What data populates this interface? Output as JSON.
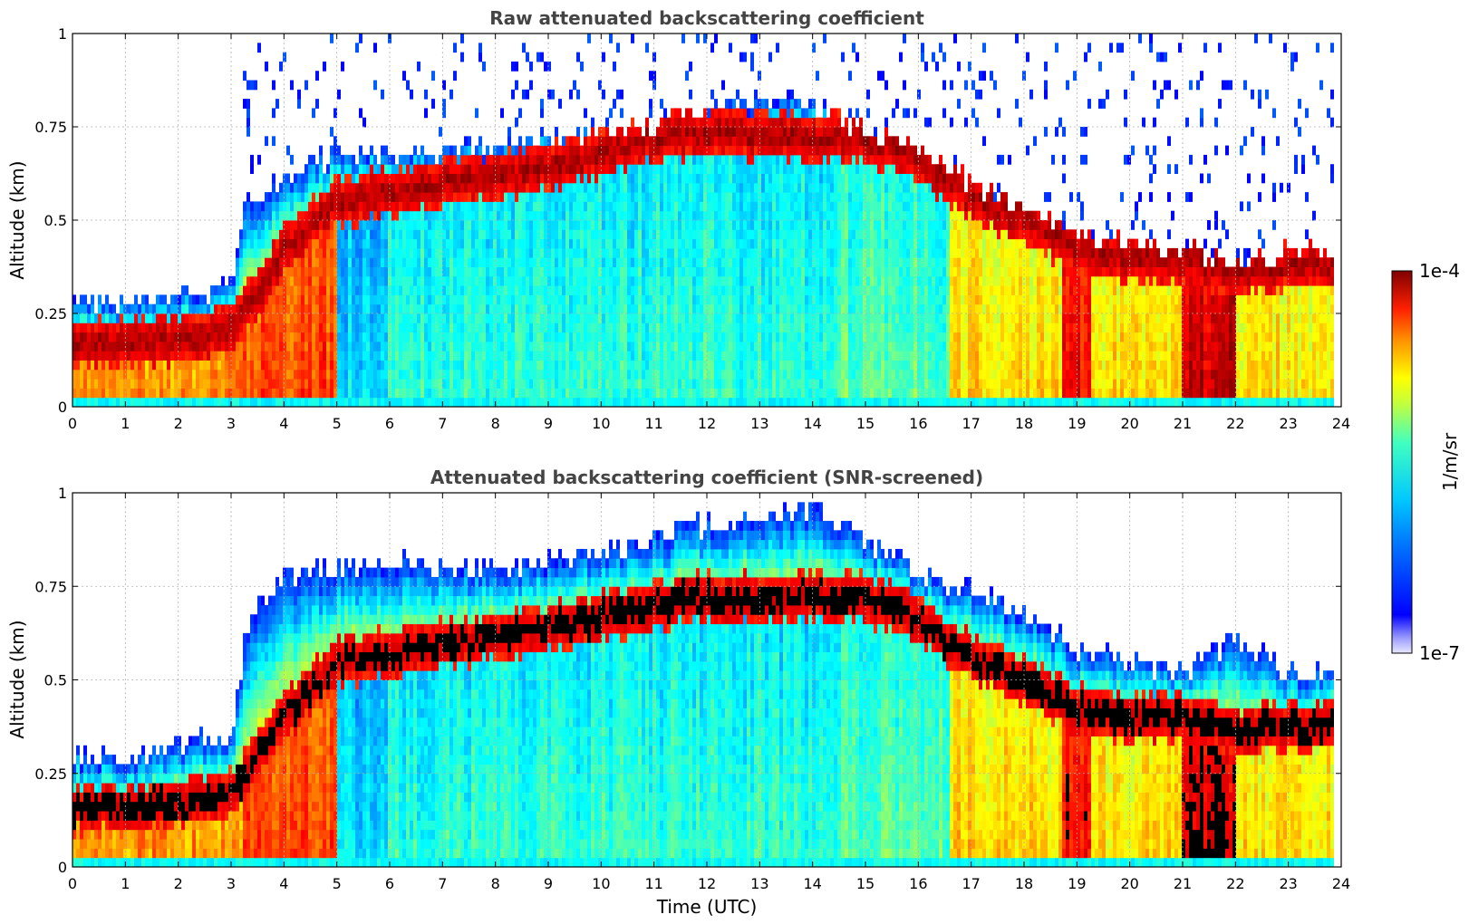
{
  "chart_data": [
    {
      "type": "heatmap",
      "title": "Raw attenuated backscattering coefficient",
      "xlabel": "",
      "ylabel": "Altitude (km)",
      "xlim": [
        0,
        24
      ],
      "ylim": [
        0,
        1
      ],
      "x_ticks": [
        "0",
        "1",
        "2",
        "3",
        "4",
        "5",
        "6",
        "7",
        "8",
        "9",
        "10",
        "11",
        "12",
        "13",
        "14",
        "15",
        "16",
        "17",
        "18",
        "19",
        "20",
        "21",
        "22",
        "23",
        "24"
      ],
      "y_ticks": [
        "0",
        "0.25",
        "0.5",
        "0.75",
        "1"
      ],
      "grid": true,
      "colormap": "jet",
      "color_scale": "log",
      "color_range": [
        "1e-7",
        "1e-4"
      ],
      "layer_top_km": [
        [
          0,
          0.28
        ],
        [
          1,
          0.28
        ],
        [
          2,
          0.3
        ],
        [
          3,
          0.32
        ],
        [
          3.3,
          0.55
        ],
        [
          4,
          0.62
        ],
        [
          5,
          0.68
        ],
        [
          6,
          0.68
        ],
        [
          7,
          0.68
        ],
        [
          8,
          0.7
        ],
        [
          9,
          0.72
        ],
        [
          10,
          0.74
        ],
        [
          11,
          0.76
        ],
        [
          12,
          0.8
        ],
        [
          13,
          0.82
        ],
        [
          14,
          0.82
        ],
        [
          15,
          0.74
        ],
        [
          16,
          0.68
        ],
        [
          17,
          0.6
        ],
        [
          18,
          0.52
        ],
        [
          19,
          0.46
        ],
        [
          20,
          0.44
        ],
        [
          21,
          0.42
        ],
        [
          22,
          0.38
        ],
        [
          23,
          0.42
        ],
        [
          23.8,
          0.42
        ]
      ],
      "strong_layer_km": [
        [
          0,
          0.16
        ],
        [
          1,
          0.17
        ],
        [
          2,
          0.18
        ],
        [
          3,
          0.2
        ],
        [
          4,
          0.42
        ],
        [
          5,
          0.55
        ],
        [
          9,
          0.64
        ],
        [
          11,
          0.72
        ],
        [
          12,
          0.74
        ],
        [
          14,
          0.72
        ],
        [
          15,
          0.72
        ],
        [
          16,
          0.66
        ],
        [
          17,
          0.56
        ],
        [
          18,
          0.5
        ],
        [
          19,
          0.42
        ],
        [
          20,
          0.4
        ],
        [
          21,
          0.4
        ],
        [
          22,
          0.36
        ],
        [
          23,
          0.38
        ],
        [
          23.8,
          0.38
        ]
      ]
    },
    {
      "type": "heatmap",
      "title": "Attenuated backscattering coefficient (SNR-screened)",
      "xlabel": "Time (UTC)",
      "ylabel": "Altitude (km)",
      "xlim": [
        0,
        24
      ],
      "ylim": [
        0,
        1
      ],
      "x_ticks": [
        "0",
        "1",
        "2",
        "3",
        "4",
        "5",
        "6",
        "7",
        "8",
        "9",
        "10",
        "11",
        "12",
        "13",
        "14",
        "15",
        "16",
        "17",
        "18",
        "19",
        "20",
        "21",
        "22",
        "23",
        "24"
      ],
      "y_ticks": [
        "0",
        "0.25",
        "0.5",
        "0.75",
        "1"
      ],
      "grid": true,
      "colormap": "jet",
      "color_scale": "log",
      "color_range": [
        "1e-7",
        "1e-4"
      ],
      "layer_top_km": [
        [
          0,
          0.3
        ],
        [
          1,
          0.29
        ],
        [
          2,
          0.33
        ],
        [
          3,
          0.35
        ],
        [
          3.3,
          0.65
        ],
        [
          4,
          0.78
        ],
        [
          5,
          0.8
        ],
        [
          6,
          0.82
        ],
        [
          7,
          0.8
        ],
        [
          8,
          0.8
        ],
        [
          9,
          0.82
        ],
        [
          10,
          0.84
        ],
        [
          11,
          0.88
        ],
        [
          12,
          0.92
        ],
        [
          13,
          0.94
        ],
        [
          14,
          0.96
        ],
        [
          15,
          0.88
        ],
        [
          16,
          0.78
        ],
        [
          17,
          0.74
        ],
        [
          18,
          0.68
        ],
        [
          19,
          0.58
        ],
        [
          20,
          0.56
        ],
        [
          21,
          0.52
        ],
        [
          22,
          0.62
        ],
        [
          23,
          0.52
        ],
        [
          23.8,
          0.52
        ]
      ],
      "strong_layer_km": [
        [
          0,
          0.16
        ],
        [
          1,
          0.16
        ],
        [
          2,
          0.17
        ],
        [
          3,
          0.2
        ],
        [
          4,
          0.4
        ],
        [
          5,
          0.55
        ],
        [
          9,
          0.64
        ],
        [
          11,
          0.7
        ],
        [
          12,
          0.72
        ],
        [
          14,
          0.72
        ],
        [
          15,
          0.72
        ],
        [
          16,
          0.66
        ],
        [
          17,
          0.56
        ],
        [
          18,
          0.5
        ],
        [
          19,
          0.42
        ],
        [
          20,
          0.4
        ],
        [
          21,
          0.4
        ],
        [
          22,
          0.36
        ],
        [
          23,
          0.38
        ],
        [
          23.8,
          0.38
        ]
      ]
    }
  ],
  "colorbar": {
    "label": "1/m/sr",
    "top": "1e-4",
    "bottom": "1e-7"
  }
}
